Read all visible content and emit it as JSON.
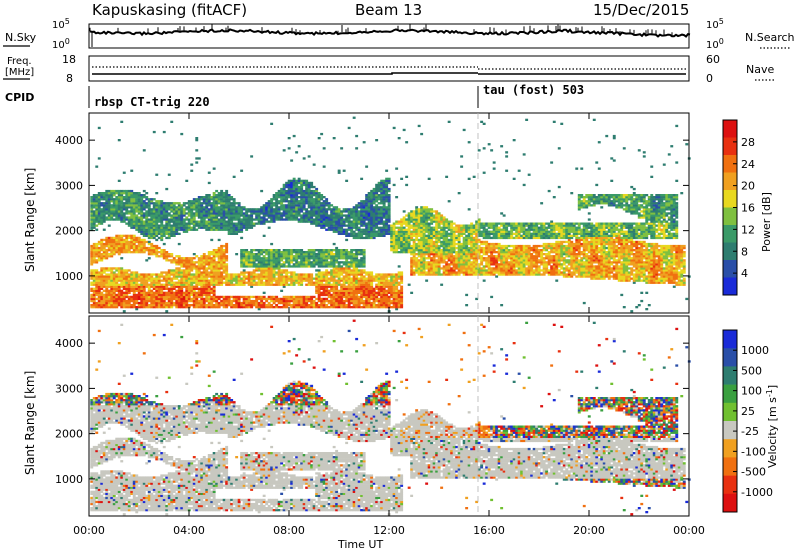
{
  "header": {
    "station": "Kapuskasing (fitACF)",
    "beam": "Beam 13",
    "date": "15/Dec/2015"
  },
  "noise_panel": {
    "left_label": "N.Sky",
    "right_label": "N.Search",
    "left_ticks": [
      "10^5",
      "10^0"
    ],
    "right_ticks": [
      "10^5",
      "10^0"
    ]
  },
  "freq_panel": {
    "left_label_line1": "Freq.",
    "left_label_line2": "[MHz]",
    "left_ticks": [
      "18",
      "8"
    ],
    "right_label": "Nave",
    "right_ticks": [
      "60",
      "0"
    ],
    "cpid_label": "CPID",
    "cpid_segments": [
      "rbsp CT-trig 220",
      "tau (fost) 503"
    ]
  },
  "colors": {
    "power": [
      "#1a2bd8",
      "#2a4fa8",
      "#2e7d70",
      "#3a9a68",
      "#7fc040",
      "#e8d820",
      "#f0a020",
      "#f07010",
      "#e83010",
      "#dd1010"
    ],
    "velocity": [
      "#1a2bd8",
      "#2a4fa8",
      "#2e7d70",
      "#3aa040",
      "#70c030",
      "#c8c8c0",
      "#f0a020",
      "#f07010",
      "#e83010",
      "#dd1010"
    ],
    "ground_scatter": "#c8c8c0"
  },
  "chart_data": [
    {
      "type": "heatmap",
      "title": "Power",
      "xlabel": "Time UT",
      "ylabel": "Slant Range [km]",
      "x_ticks": [
        "00:00",
        "04:00",
        "08:00",
        "12:00",
        "16:00",
        "20:00",
        "00:00"
      ],
      "xlim_hours": [
        0,
        24
      ],
      "y_ticks": [
        1000,
        2000,
        3000,
        4000
      ],
      "ylim": [
        180,
        4600
      ],
      "colorbar": {
        "label": "Power [dB]",
        "range": [
          0,
          32
        ],
        "ticks": [
          4,
          8,
          12,
          16,
          20,
          24,
          28
        ]
      }
    },
    {
      "type": "heatmap",
      "title": "Velocity",
      "xlabel": "Time UT",
      "ylabel": "Slant Range [km]",
      "x_ticks": [
        "00:00",
        "04:00",
        "08:00",
        "12:00",
        "16:00",
        "20:00",
        "00:00"
      ],
      "xlim_hours": [
        0,
        24
      ],
      "y_ticks": [
        1000,
        2000,
        3000,
        4000
      ],
      "ylim": [
        180,
        4600
      ],
      "colorbar": {
        "label": "Velocity [m s-1]",
        "unit_display": "Velocity  [m s",
        "unit_exp": "-1",
        "unit_close": "]",
        "ticks": [
          "1000",
          "500",
          "100",
          "25",
          "-25",
          "-100",
          "-500",
          "-1000"
        ]
      }
    }
  ],
  "x_axis_title": "Time UT"
}
